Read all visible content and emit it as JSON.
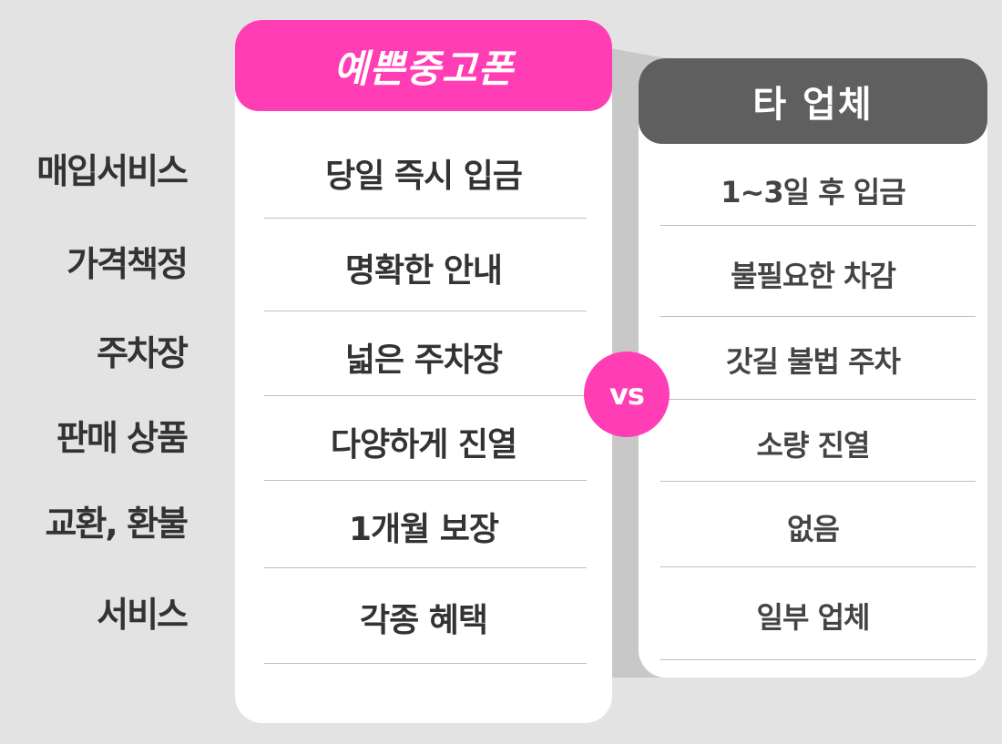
{
  "rows": {
    "labels": [
      "매입서비스",
      "가격책정",
      "주차장",
      "판매 상품",
      "교환, 환불",
      "서비스"
    ]
  },
  "ours": {
    "title": "예쁜중고폰",
    "values": [
      "당일 즉시 입금",
      "명확한 안내",
      "넓은 주차장",
      "다양하게 진열",
      "1개월 보장",
      "각종 혜택"
    ]
  },
  "other": {
    "title": "타 업체",
    "values": [
      "1~3일 후 입금",
      "불필요한 차감",
      "갓길 불법 주차",
      "소량 진열",
      "없음",
      "일부 업체"
    ]
  },
  "vs_label": "vs",
  "colors": {
    "accent": "#ff3eb5",
    "other_header": "#5f5f5f",
    "background": "#e3e3e3"
  }
}
